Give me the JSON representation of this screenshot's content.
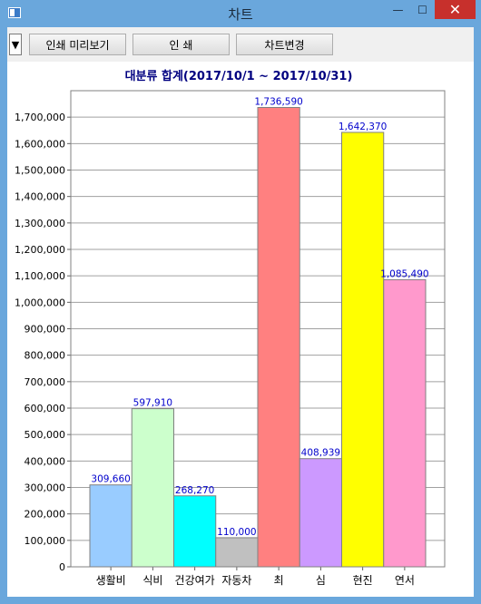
{
  "window": {
    "title": "차트",
    "minimize_glyph": "—",
    "maximize_glyph": "☐",
    "close_glyph": "✕"
  },
  "toolbar": {
    "dropdown_glyph": "▼",
    "preview_label": "인쇄 미리보기",
    "print_label": "인 쇄",
    "change_chart_label": "차트변경"
  },
  "chart_data": {
    "type": "bar",
    "title": "대분류 합계(2017/10/1 ~ 2017/10/31)",
    "categories": [
      "생활비",
      "식비",
      "건강여가",
      "자동차",
      "최",
      "심",
      "현진",
      "연서"
    ],
    "values": [
      309660,
      597910,
      268270,
      110000,
      1736590,
      408939,
      1642370,
      1085490
    ],
    "value_labels": [
      "309,660",
      "597,910",
      "268,270",
      "110,000",
      "1,736,590",
      "408,939",
      "1,642,370",
      "1,085,490"
    ],
    "colors": [
      "#99ccff",
      "#ccffcc",
      "#00ffff",
      "#c0c0c0",
      "#ff8080",
      "#cc99ff",
      "#ffff00",
      "#ff99cc"
    ],
    "ylim": [
      0,
      1800000
    ],
    "yticks": [
      0,
      100000,
      200000,
      300000,
      400000,
      500000,
      600000,
      700000,
      800000,
      900000,
      1000000,
      1100000,
      1200000,
      1300000,
      1400000,
      1500000,
      1600000,
      1700000
    ],
    "ytick_labels": [
      "0",
      "100,000",
      "200,000",
      "300,000",
      "400,000",
      "500,000",
      "600,000",
      "700,000",
      "800,000",
      "900,000",
      "1,000,000",
      "1,100,000",
      "1,200,000",
      "1,300,000",
      "1,400,000",
      "1,500,000",
      "1,600,000",
      "1,700,000"
    ],
    "grid": true,
    "legend": "none",
    "title_color": "#000080",
    "value_label_color": "#0000cc"
  }
}
